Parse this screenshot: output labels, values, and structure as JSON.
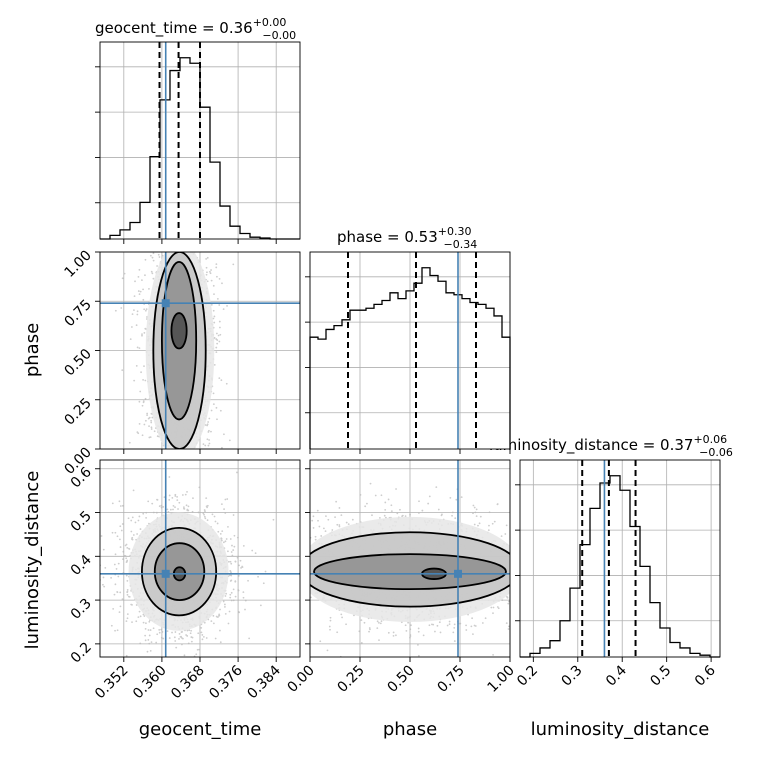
{
  "chart_data": {
    "type": "corner",
    "parameters": [
      {
        "name": "geocent_time",
        "label": "geocent_time",
        "median": 0.36,
        "plus": "+0.00",
        "minus": "−0.00",
        "title": "geocent_time = 0.36",
        "range": [
          0.347,
          0.389
        ],
        "ticks": [
          "0.352",
          "0.360",
          "0.368",
          "0.376",
          "0.384"
        ],
        "quantiles": [
          0.3595,
          0.3635,
          0.368
        ],
        "truth": 0.3608,
        "histogram": [
          0,
          0.02,
          0.05,
          0.09,
          0.2,
          0.45,
          0.76,
          0.92,
          0.99,
          0.96,
          0.72,
          0.42,
          0.18,
          0.07,
          0.03,
          0.01,
          0.005,
          0,
          0,
          0
        ]
      },
      {
        "name": "phase",
        "label": "phase",
        "median": 0.53,
        "plus": "+0.30",
        "minus": "−0.34",
        "title": "phase = 0.53",
        "range": [
          0,
          1
        ],
        "ticks": [
          "0.00",
          "0.25",
          "0.50",
          "0.75",
          "1.00"
        ],
        "quantiles": [
          0.19,
          0.53,
          0.83
        ],
        "truth": 0.74,
        "histogram": [
          0.58,
          0.57,
          0.62,
          0.64,
          0.67,
          0.72,
          0.72,
          0.73,
          0.75,
          0.77,
          0.81,
          0.78,
          0.82,
          0.86,
          0.94,
          0.9,
          0.87,
          0.81,
          0.8,
          0.78,
          0.76,
          0.75,
          0.73,
          0.69,
          0.58
        ]
      },
      {
        "name": "luminosity_distance",
        "label": "luminosity_distance",
        "median": 0.37,
        "plus": "+0.06",
        "minus": "−0.06",
        "title": "luminosity_distance = 0.37",
        "range": [
          0.17,
          0.62
        ],
        "ticks": [
          "0.2",
          "0.3",
          "0.4",
          "0.5",
          "0.6"
        ],
        "quantiles": [
          0.31,
          0.37,
          0.43
        ],
        "truth": 0.36,
        "histogram": [
          0,
          0.02,
          0.05,
          0.09,
          0.2,
          0.38,
          0.62,
          0.82,
          0.96,
          1.0,
          0.92,
          0.72,
          0.5,
          0.3,
          0.16,
          0.08,
          0.05,
          0.02,
          0.01,
          0
        ]
      }
    ],
    "pairs": [
      {
        "x": "geocent_time",
        "y": "phase",
        "contours": [
          {
            "level": "outer",
            "cx": 0.3638,
            "cy": 0.5,
            "hx": 0.0072,
            "hy": 0.55
          },
          {
            "level": "mid",
            "cx": 0.3637,
            "cy": 0.5,
            "hx": 0.0055,
            "hy": 0.5
          },
          {
            "level": "inner",
            "cx": 0.3636,
            "cy": 0.55,
            "hx": 0.0036,
            "hy": 0.4
          },
          {
            "level": "core",
            "cx": 0.3636,
            "cy": 0.6,
            "hx": 0.0016,
            "hy": 0.09
          }
        ]
      },
      {
        "x": "geocent_time",
        "y": "luminosity_distance",
        "contours": [
          {
            "level": "outer",
            "cx": 0.3635,
            "cy": 0.365,
            "hx": 0.0105,
            "hy": 0.135
          },
          {
            "level": "mid",
            "cx": 0.3636,
            "cy": 0.365,
            "hx": 0.0078,
            "hy": 0.1
          },
          {
            "level": "inner",
            "cx": 0.3637,
            "cy": 0.365,
            "hx": 0.0052,
            "hy": 0.065
          },
          {
            "level": "core",
            "cx": 0.3637,
            "cy": 0.36,
            "hx": 0.0012,
            "hy": 0.015
          }
        ]
      },
      {
        "x": "phase",
        "y": "luminosity_distance",
        "contours": [
          {
            "level": "outer",
            "cx": 0.5,
            "cy": 0.37,
            "hx": 0.56,
            "hy": 0.12
          },
          {
            "level": "mid",
            "cx": 0.5,
            "cy": 0.37,
            "hx": 0.55,
            "hy": 0.085
          },
          {
            "level": "inner",
            "cx": 0.5,
            "cy": 0.365,
            "hx": 0.48,
            "hy": 0.04
          },
          {
            "level": "core",
            "cx": 0.62,
            "cy": 0.36,
            "hx": 0.06,
            "hy": 0.012
          }
        ]
      }
    ],
    "colors": {
      "truth": "#4682b4",
      "quantile": "#000000",
      "samples": "#b8b8b8"
    },
    "grid": true,
    "legend": "none"
  }
}
